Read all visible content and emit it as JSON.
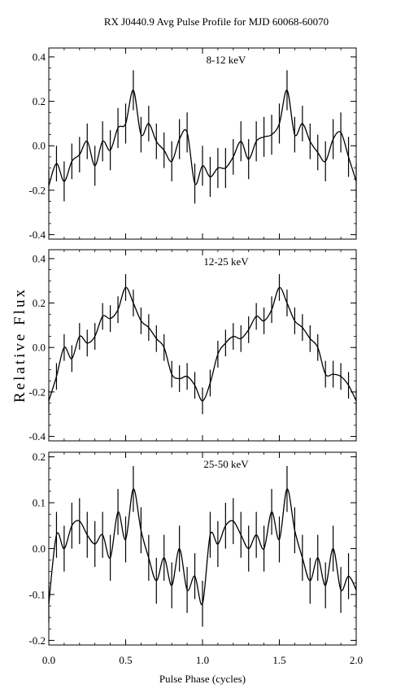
{
  "title": "RX J0440.9 Avg Pulse Profile for MJD 60068-60070",
  "chart_data": {
    "type": "line",
    "xlabel": "Pulse Phase (cycles)",
    "ylabel": "Relative Flux",
    "xlim": [
      0,
      2
    ],
    "x_ticks": [
      "0.0",
      "0.5",
      "1.0",
      "1.5",
      "2.0"
    ],
    "x": [
      0.0,
      0.05,
      0.1,
      0.15,
      0.2,
      0.25,
      0.3,
      0.35,
      0.4,
      0.45,
      0.5,
      0.55,
      0.6,
      0.65,
      0.7,
      0.75,
      0.8,
      0.85,
      0.9,
      0.95,
      1.0,
      1.05,
      1.1,
      1.15,
      1.2,
      1.25,
      1.3,
      1.35,
      1.4,
      1.45,
      1.5,
      1.55,
      1.6,
      1.65,
      1.7,
      1.75,
      1.8,
      1.85,
      1.9,
      1.95,
      2.0
    ],
    "panels": [
      {
        "label": "8-12 keV",
        "ylim": [
          -0.42,
          0.44
        ],
        "y_ticks": [
          "-0.4",
          "-0.2",
          "0.0",
          "0.2",
          "0.4"
        ],
        "y_tick_values": [
          -0.4,
          -0.2,
          0.0,
          0.2,
          0.4
        ],
        "values": [
          -0.18,
          -0.08,
          -0.16,
          -0.07,
          -0.04,
          0.02,
          -0.09,
          0.02,
          -0.02,
          0.08,
          0.1,
          0.25,
          0.05,
          0.1,
          0.02,
          -0.02,
          -0.07,
          0.03,
          0.06,
          -0.17,
          -0.09,
          -0.14,
          -0.1,
          -0.1,
          -0.05,
          0.02,
          -0.06,
          0.02,
          0.04,
          0.05,
          0.1,
          0.25,
          0.05,
          0.1,
          0.02,
          -0.03,
          -0.07,
          0.03,
          0.06,
          -0.05,
          -0.16
        ],
        "errors": [
          0.07,
          0.08,
          0.09,
          0.08,
          0.08,
          0.08,
          0.09,
          0.09,
          0.09,
          0.09,
          0.09,
          0.09,
          0.08,
          0.08,
          0.08,
          0.08,
          0.09,
          0.09,
          0.09,
          0.09,
          0.09,
          0.09,
          0.09,
          0.09,
          0.08,
          0.09,
          0.09,
          0.09,
          0.09,
          0.09,
          0.09,
          0.09,
          0.08,
          0.08,
          0.08,
          0.08,
          0.09,
          0.09,
          0.09,
          0.09,
          0.08
        ]
      },
      {
        "label": "12-25 keV",
        "ylim": [
          -0.42,
          0.44
        ],
        "y_ticks": [
          "-0.4",
          "-0.2",
          "0.0",
          "0.2",
          "0.4"
        ],
        "y_tick_values": [
          -0.4,
          -0.2,
          0.0,
          0.2,
          0.4
        ],
        "values": [
          -0.24,
          -0.13,
          0.0,
          -0.05,
          0.05,
          0.02,
          0.05,
          0.14,
          0.13,
          0.17,
          0.27,
          0.2,
          0.12,
          0.09,
          0.04,
          0.0,
          -0.12,
          -0.14,
          -0.13,
          -0.17,
          -0.24,
          -0.16,
          -0.03,
          0.02,
          0.05,
          0.04,
          0.08,
          0.14,
          0.12,
          0.17,
          0.27,
          0.2,
          0.12,
          0.09,
          0.04,
          0.0,
          -0.12,
          -0.12,
          -0.13,
          -0.17,
          -0.24
        ],
        "errors": [
          0.05,
          0.06,
          0.06,
          0.06,
          0.06,
          0.06,
          0.06,
          0.06,
          0.06,
          0.06,
          0.06,
          0.06,
          0.06,
          0.06,
          0.06,
          0.06,
          0.06,
          0.06,
          0.06,
          0.06,
          0.06,
          0.06,
          0.06,
          0.06,
          0.06,
          0.06,
          0.06,
          0.06,
          0.06,
          0.06,
          0.06,
          0.06,
          0.06,
          0.06,
          0.06,
          0.06,
          0.06,
          0.06,
          0.06,
          0.06,
          0.05
        ]
      },
      {
        "label": "25-50 keV",
        "ylim": [
          -0.21,
          0.21
        ],
        "y_ticks": [
          "-0.2",
          "-0.1",
          "0.0",
          "0.1",
          "0.2"
        ],
        "y_tick_values": [
          -0.2,
          -0.1,
          0.0,
          0.1,
          0.2
        ],
        "values": [
          -0.12,
          0.03,
          0.0,
          0.05,
          0.06,
          0.03,
          0.01,
          0.03,
          -0.02,
          0.08,
          0.02,
          0.13,
          0.04,
          -0.02,
          -0.07,
          -0.02,
          -0.08,
          0.0,
          -0.09,
          -0.06,
          -0.12,
          0.03,
          0.01,
          0.05,
          0.06,
          0.03,
          0.0,
          0.03,
          0.0,
          0.08,
          0.02,
          0.13,
          0.04,
          -0.02,
          -0.07,
          -0.02,
          -0.08,
          0.0,
          -0.09,
          -0.06,
          -0.09
        ],
        "errors": [
          0.04,
          0.05,
          0.05,
          0.05,
          0.05,
          0.05,
          0.05,
          0.05,
          0.05,
          0.05,
          0.05,
          0.05,
          0.05,
          0.05,
          0.05,
          0.05,
          0.05,
          0.05,
          0.05,
          0.05,
          0.05,
          0.05,
          0.05,
          0.05,
          0.05,
          0.05,
          0.05,
          0.05,
          0.05,
          0.05,
          0.05,
          0.05,
          0.05,
          0.05,
          0.05,
          0.05,
          0.05,
          0.05,
          0.05,
          0.05,
          0.04
        ]
      }
    ]
  }
}
